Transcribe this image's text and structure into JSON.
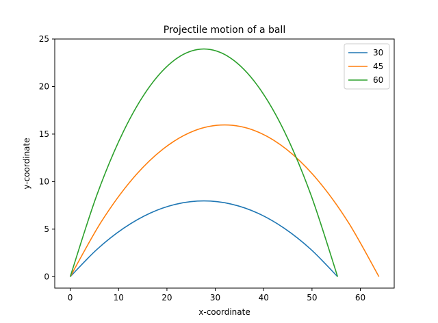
{
  "chart_data": {
    "type": "line",
    "title": "Projectile motion of a ball",
    "xlabel": "x-coordinate",
    "ylabel": "y-coordinate",
    "xlim": [
      -3.2,
      67.0
    ],
    "ylim": [
      -1.2,
      25.0
    ],
    "xticks": [
      0,
      10,
      20,
      30,
      40,
      50,
      60
    ],
    "yticks": [
      0,
      5,
      10,
      15,
      20,
      25
    ],
    "grid": false,
    "legend_position": "top-right",
    "series": [
      {
        "name": "30",
        "color": "#1f77b4",
        "x": [
          0,
          5.53,
          11.06,
          16.59,
          22.12,
          27.65,
          33.18,
          38.71,
          44.24,
          49.77,
          55.3
        ],
        "y": [
          0,
          2.87,
          5.1,
          6.7,
          7.65,
          7.97,
          7.65,
          6.7,
          5.1,
          2.87,
          0
        ]
      },
      {
        "name": "45",
        "color": "#ff7f0e",
        "x": [
          0,
          6.39,
          12.77,
          19.16,
          25.54,
          31.93,
          38.31,
          44.7,
          51.08,
          57.47,
          63.85
        ],
        "y": [
          0,
          5.75,
          10.22,
          13.41,
          15.33,
          15.96,
          15.33,
          13.41,
          10.22,
          5.75,
          0
        ]
      },
      {
        "name": "60",
        "color": "#2ca02c",
        "x": [
          0,
          5.53,
          11.06,
          16.59,
          22.12,
          27.65,
          33.18,
          38.71,
          44.24,
          49.77,
          55.3
        ],
        "y": [
          0,
          8.62,
          15.33,
          20.12,
          22.99,
          23.95,
          22.99,
          20.12,
          15.33,
          8.62,
          0
        ]
      }
    ]
  }
}
